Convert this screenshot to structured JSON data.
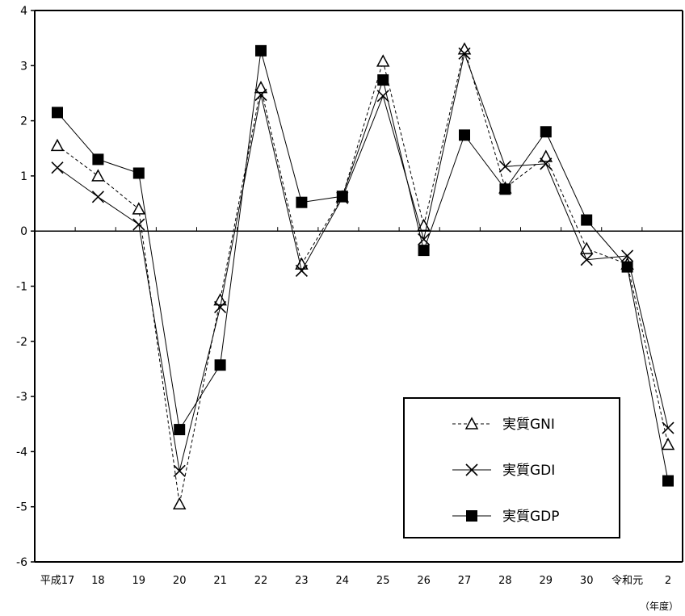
{
  "chart_data": {
    "type": "line",
    "categories": [
      "平成17",
      "18",
      "19",
      "20",
      "21",
      "22",
      "23",
      "24",
      "25",
      "26",
      "27",
      "28",
      "29",
      "30",
      "令和元",
      "2"
    ],
    "x_unit_label": "（年度）",
    "ylim": [
      -6,
      4
    ],
    "yticks": [
      -6,
      -5,
      -4,
      -3,
      -2,
      -1,
      0,
      1,
      2,
      3,
      4
    ],
    "grid": false,
    "legend_position": "bottom-right",
    "series": [
      {
        "name": "実質GNI",
        "marker": "open-triangle",
        "line_style": "dashed",
        "color": "#000000",
        "values": [
          1.55,
          1.0,
          0.4,
          -4.95,
          -1.25,
          2.6,
          -0.6,
          0.62,
          3.08,
          0.1,
          3.3,
          0.78,
          1.35,
          -0.32,
          -0.6,
          -3.87
        ]
      },
      {
        "name": "実質GDI",
        "marker": "cross",
        "line_style": "solid",
        "color": "#000000",
        "values": [
          1.15,
          0.62,
          0.12,
          -4.35,
          -1.38,
          2.47,
          -0.72,
          0.6,
          2.45,
          -0.15,
          3.22,
          1.17,
          1.22,
          -0.52,
          -0.45,
          -3.57
        ]
      },
      {
        "name": "実質GDP",
        "marker": "filled-square",
        "line_style": "solid",
        "color": "#000000",
        "values": [
          2.15,
          1.3,
          1.05,
          -3.6,
          -2.43,
          3.27,
          0.52,
          0.63,
          2.74,
          -0.35,
          1.74,
          0.76,
          1.8,
          0.2,
          -0.65,
          -4.53
        ]
      }
    ]
  }
}
